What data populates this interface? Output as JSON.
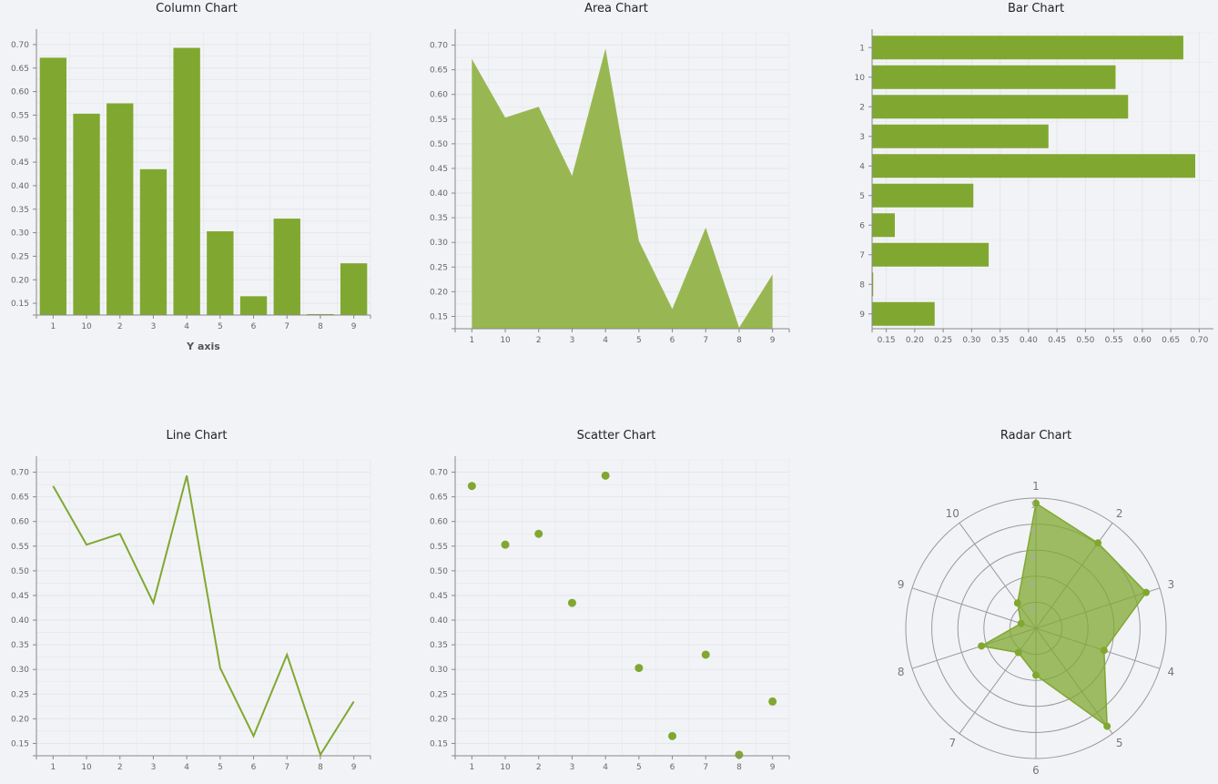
{
  "colors": {
    "accent": "#80a830",
    "area": "#98b752",
    "grid": "#e4e6ea",
    "axis": "#888888",
    "background": "#f2f3f7"
  },
  "chart_data": [
    {
      "id": "column",
      "type": "bar",
      "orientation": "vertical",
      "title": "Column Chart",
      "xlabel": "Y axis",
      "categories": [
        "1",
        "10",
        "2",
        "3",
        "4",
        "5",
        "6",
        "7",
        "8",
        "9"
      ],
      "values": [
        0.672,
        0.553,
        0.575,
        0.435,
        0.693,
        0.303,
        0.165,
        0.33,
        0.127,
        0.235
      ],
      "ylim": [
        0.125,
        0.725
      ],
      "yticks": [
        "0.15",
        "0.20",
        "0.25",
        "0.30",
        "0.35",
        "0.40",
        "0.45",
        "0.50",
        "0.55",
        "0.60",
        "0.65",
        "0.70"
      ]
    },
    {
      "id": "area",
      "type": "area",
      "title": "Area Chart",
      "categories": [
        "1",
        "10",
        "2",
        "3",
        "4",
        "5",
        "6",
        "7",
        "8",
        "9"
      ],
      "values": [
        0.672,
        0.553,
        0.575,
        0.435,
        0.693,
        0.303,
        0.165,
        0.33,
        0.127,
        0.235
      ],
      "ylim": [
        0.125,
        0.725
      ],
      "yticks": [
        "0.15",
        "0.20",
        "0.25",
        "0.30",
        "0.35",
        "0.40",
        "0.45",
        "0.50",
        "0.55",
        "0.60",
        "0.65",
        "0.70"
      ]
    },
    {
      "id": "bar",
      "type": "bar",
      "orientation": "horizontal",
      "title": "Bar Chart",
      "categories": [
        "1",
        "10",
        "2",
        "3",
        "4",
        "5",
        "6",
        "7",
        "8",
        "9"
      ],
      "values": [
        0.672,
        0.553,
        0.575,
        0.435,
        0.693,
        0.303,
        0.165,
        0.33,
        0.127,
        0.235
      ],
      "xlim": [
        0.125,
        0.725
      ],
      "xticks": [
        "0.15",
        "0.20",
        "0.25",
        "0.30",
        "0.35",
        "0.40",
        "0.45",
        "0.50",
        "0.55",
        "0.60",
        "0.65",
        "0.70"
      ]
    },
    {
      "id": "line",
      "type": "line",
      "title": "Line Chart",
      "categories": [
        "1",
        "10",
        "2",
        "3",
        "4",
        "5",
        "6",
        "7",
        "8",
        "9"
      ],
      "values": [
        0.672,
        0.553,
        0.575,
        0.435,
        0.693,
        0.303,
        0.165,
        0.33,
        0.127,
        0.235
      ],
      "ylim": [
        0.125,
        0.725
      ],
      "yticks": [
        "0.15",
        "0.20",
        "0.25",
        "0.30",
        "0.35",
        "0.40",
        "0.45",
        "0.50",
        "0.55",
        "0.60",
        "0.65",
        "0.70"
      ]
    },
    {
      "id": "scatter",
      "type": "scatter",
      "title": "Scatter Chart",
      "categories": [
        "1",
        "10",
        "2",
        "3",
        "4",
        "5",
        "6",
        "7",
        "8",
        "9"
      ],
      "values": [
        0.672,
        0.553,
        0.575,
        0.435,
        0.693,
        0.303,
        0.165,
        0.33,
        0.127,
        0.235
      ],
      "ylim": [
        0.125,
        0.725
      ],
      "yticks": [
        "0.15",
        "0.20",
        "0.25",
        "0.30",
        "0.35",
        "0.40",
        "0.45",
        "0.50",
        "0.55",
        "0.60",
        "0.65",
        "0.70"
      ]
    },
    {
      "id": "radar",
      "type": "radar",
      "title": "Radar Chart",
      "categories": [
        "1",
        "2",
        "3",
        "4",
        "5",
        "6",
        "7",
        "8",
        "9",
        "10"
      ],
      "values": [
        0.96,
        0.81,
        0.89,
        0.55,
        0.93,
        0.36,
        0.23,
        0.44,
        0.12,
        0.24
      ],
      "radial_max": 1,
      "radial_ticks": [
        "1",
        "0",
        "0",
        "0",
        "0"
      ]
    }
  ]
}
